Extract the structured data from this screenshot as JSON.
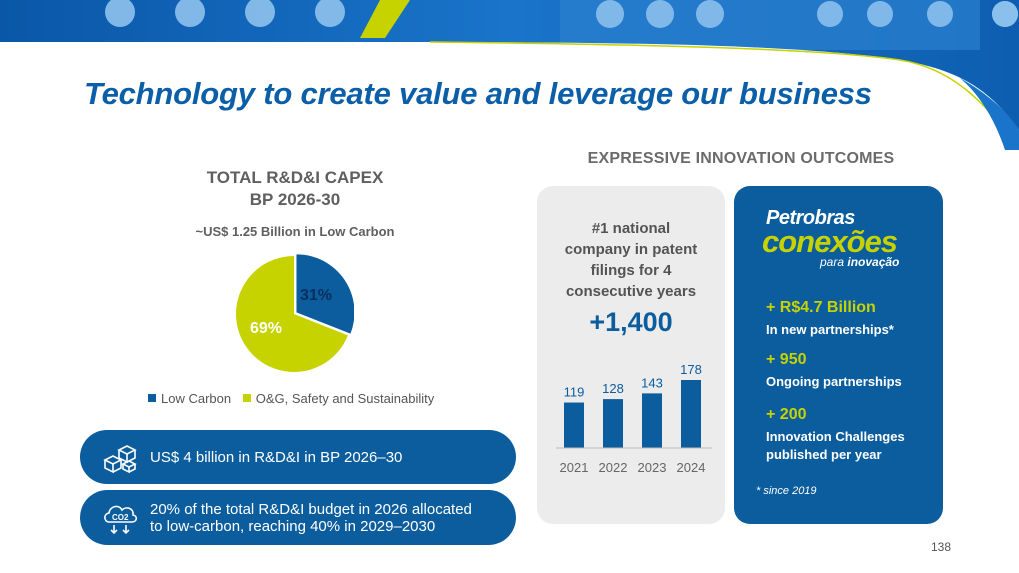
{
  "title": "Technology to create value and leverage our business",
  "capex": {
    "title_line1": "TOTAL R&D&I CAPEX",
    "title_line2": "BP 2026-30",
    "subtitle": "~US$ 1.25 Billion in Low Carbon"
  },
  "chart_data": [
    {
      "type": "pie",
      "labels": [
        "Low Carbon",
        "O&G, Safety and Sustainability"
      ],
      "values": [
        31,
        69
      ],
      "value_labels": [
        "31%",
        "69%"
      ],
      "colors": [
        "#0b5d9e",
        "#c7d300"
      ],
      "legend": "bottom"
    },
    {
      "type": "bar",
      "categories": [
        "2021",
        "2022",
        "2023",
        "2024"
      ],
      "values": [
        119,
        128,
        143,
        178
      ],
      "color": "#0b5d9e"
    }
  ],
  "pills": [
    {
      "icon": "cubes-icon",
      "text": "US$ 4 billion in R&D&I in BP 2026–30"
    },
    {
      "icon": "co2-cloud-icon",
      "text_line1": "20% of the total R&D&I budget in 2026 allocated",
      "text_line2": "to low-carbon, reaching 40% in 2029–2030"
    }
  ],
  "outcomes": {
    "title": "EXPRESSIVE INNOVATION OUTCOMES",
    "patent_lines": [
      "#1 national",
      "company in patent",
      "filings for 4",
      "consecutive years"
    ],
    "patent_count": "+1,400"
  },
  "conexoes": {
    "brand_line1": "Petrobras",
    "brand_line2": "conexões",
    "brand_line3_prefix": "para ",
    "brand_line3_emphasis": "inovação",
    "stats": [
      {
        "value": "+ R$4.7 Billion",
        "label": "In new partnerships*"
      },
      {
        "value": "+ 950",
        "label": "Ongoing partnerships"
      },
      {
        "value": "+ 200",
        "label": "Innovation Challenges published per year"
      }
    ],
    "footnote": "* since 2019"
  },
  "page_number": "138",
  "colors": {
    "brand_blue": "#0b5d9e",
    "brand_green": "#c7d300",
    "grey_card": "#ececec"
  }
}
